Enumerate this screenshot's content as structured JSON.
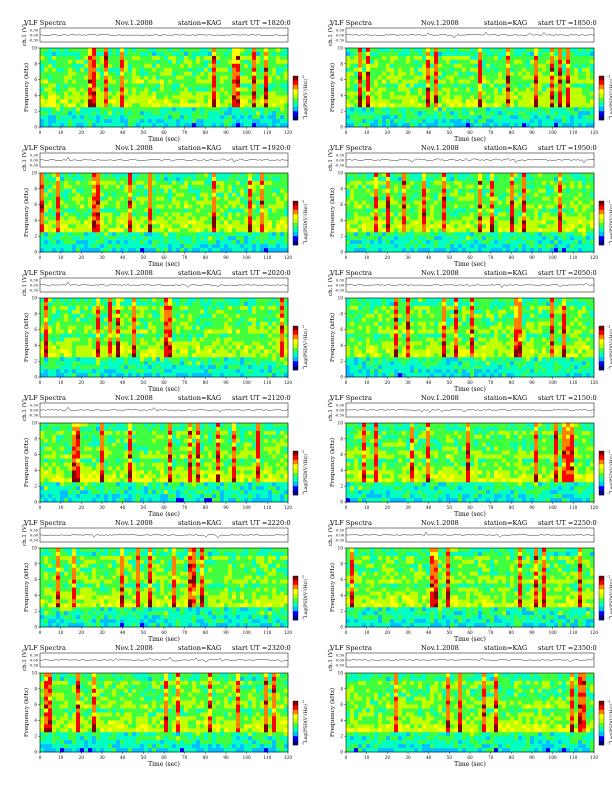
{
  "common": {
    "title": "VLF Spectra",
    "date": "Nov.1.2008",
    "station": "station=KAG",
    "start_label": "start",
    "ch_label": "ch.1 (V)",
    "ch_ticks": [
      "0.30",
      "0.00",
      "-0.30"
    ],
    "ylabel": "Frequency (kHz)",
    "ytick_labels": [
      "0",
      "2",
      "4",
      "6",
      "8",
      "10"
    ],
    "xlabel": "Time (sec)",
    "xtick_labels": [
      "0",
      "10",
      "20",
      "30",
      "40",
      "50",
      "60",
      "70",
      "80",
      "90",
      "100",
      "110",
      "120"
    ],
    "colorbar_label": "Log(PSD(V²/Hz))",
    "colorbar_ticks": [
      "-1",
      "-7"
    ],
    "colormap": [
      "#000080",
      "#0000ff",
      "#00c0ff",
      "#00ffc0",
      "#40ff40",
      "#c0ff00",
      "#ffff00",
      "#ff8000",
      "#ff0000",
      "#800000"
    ]
  },
  "panels": [
    {
      "ut": "UT =1820:0"
    },
    {
      "ut": "UT =1850:0"
    },
    {
      "ut": "UT =1920:0"
    },
    {
      "ut": "UT =1950:0"
    },
    {
      "ut": "UT =2020:0"
    },
    {
      "ut": "UT =2050:0"
    },
    {
      "ut": "UT =2120:0"
    },
    {
      "ut": "UT =2150:0"
    },
    {
      "ut": "UT =2220:0"
    },
    {
      "ut": "UT =2250:0"
    },
    {
      "ut": "UT =2320:0"
    },
    {
      "ut": "UT =2350:0"
    }
  ],
  "chart_data": {
    "type": "heatmap",
    "x_range_sec": [
      0,
      120
    ],
    "y_range_khz": [
      0,
      10
    ],
    "ch_range_v": [
      -0.3,
      0.3
    ],
    "panel_count": 12,
    "note_values": "spectrogram intensities not individually readable"
  }
}
